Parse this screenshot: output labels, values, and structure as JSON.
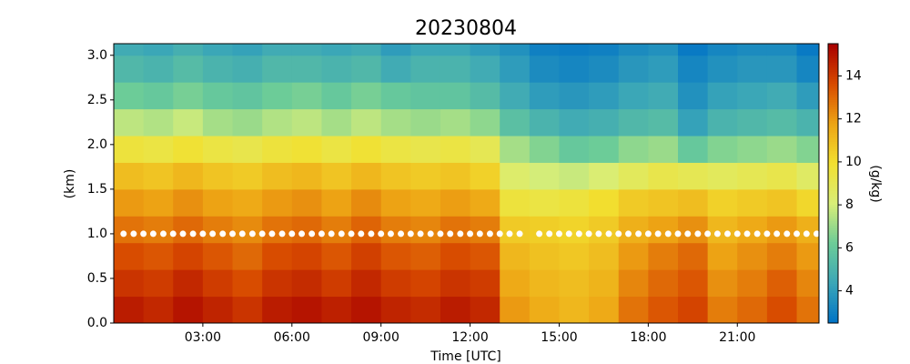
{
  "chart_data": {
    "type": "heatmap",
    "title": "20230804",
    "xlabel": "Time [UTC]",
    "ylabel": "(km)",
    "colorbar_label": "(g/kg)",
    "colormap": [
      "#0072c6",
      "#3aa6b8",
      "#6ccc98",
      "#d8ee78",
      "#f2e030",
      "#eda414",
      "#d84a00",
      "#a80000"
    ],
    "clim": [
      2.5,
      15.5
    ],
    "cticks": [
      4,
      6,
      8,
      10,
      12,
      14
    ],
    "xlim": [
      0,
      23.75
    ],
    "ylim": [
      0,
      3.13
    ],
    "xticks": [
      {
        "value": 3,
        "label": "03:00"
      },
      {
        "value": 6,
        "label": "06:00"
      },
      {
        "value": 9,
        "label": "09:00"
      },
      {
        "value": 12,
        "label": "12:00"
      },
      {
        "value": 15,
        "label": "15:00"
      },
      {
        "value": 18,
        "label": "18:00"
      },
      {
        "value": 21,
        "label": "21:00"
      }
    ],
    "yticks": [
      {
        "value": 0,
        "label": "0.0"
      },
      0.5,
      {
        "value": 1,
        "label": "1.0"
      },
      1.5,
      {
        "value": 2,
        "label": "2.0"
      },
      2.5,
      {
        "value": 3,
        "label": "3.0"
      }
    ],
    "x_bins": [
      0,
      1,
      2,
      3,
      4,
      5,
      6,
      7,
      8,
      9,
      10,
      11,
      12,
      13,
      14,
      15,
      16,
      17,
      18,
      19,
      20,
      21,
      22,
      23,
      23.75
    ],
    "y_bins": [
      0,
      0.3,
      0.6,
      0.9,
      1.2,
      1.5,
      1.8,
      2.1,
      2.4,
      2.7,
      3.0,
      3.13
    ],
    "values": [
      [
        14.8,
        14.5,
        15.0,
        14.6,
        14.2,
        14.8,
        15.0,
        14.7,
        15.0,
        14.6,
        14.4,
        14.8,
        14.5,
        12.0,
        11.5,
        11.2,
        11.6,
        12.8,
        13.4,
        13.8,
        12.6,
        13.0,
        13.6,
        12.8
      ],
      [
        14.2,
        14.0,
        14.5,
        14.0,
        13.6,
        14.2,
        14.4,
        14.0,
        14.5,
        14.0,
        13.8,
        14.2,
        14.0,
        11.6,
        11.2,
        11.0,
        11.3,
        12.4,
        13.0,
        13.4,
        12.2,
        12.6,
        13.2,
        12.4
      ],
      [
        13.6,
        13.4,
        13.8,
        13.4,
        13.0,
        13.6,
        13.8,
        13.4,
        13.9,
        13.4,
        13.2,
        13.6,
        13.4,
        11.2,
        10.9,
        10.7,
        11.0,
        12.0,
        12.6,
        13.0,
        11.8,
        12.2,
        12.6,
        12.0
      ],
      [
        12.8,
        12.6,
        13.0,
        12.6,
        12.3,
        12.8,
        13.0,
        12.6,
        13.1,
        12.6,
        12.4,
        12.8,
        12.6,
        10.6,
        10.5,
        10.3,
        10.6,
        11.4,
        11.8,
        12.2,
        11.2,
        11.6,
        12.0,
        11.4
      ],
      [
        12.0,
        11.8,
        12.2,
        11.8,
        11.6,
        12.0,
        12.2,
        11.8,
        12.3,
        11.8,
        11.6,
        11.9,
        11.6,
        9.6,
        9.4,
        9.6,
        10.0,
        10.6,
        10.8,
        11.0,
        10.4,
        10.6,
        10.8,
        10.2
      ],
      [
        11.0,
        10.8,
        11.2,
        10.8,
        10.6,
        11.0,
        11.2,
        10.8,
        11.2,
        10.8,
        10.6,
        10.8,
        10.4,
        8.4,
        8.0,
        7.8,
        8.2,
        8.8,
        9.2,
        9.0,
        8.8,
        9.0,
        9.2,
        8.6
      ],
      [
        9.6,
        9.4,
        9.8,
        9.4,
        9.2,
        9.6,
        9.8,
        9.4,
        9.8,
        9.4,
        9.2,
        9.4,
        9.0,
        7.2,
        6.6,
        6.0,
        6.2,
        6.8,
        7.0,
        6.0,
        6.6,
        6.8,
        7.0,
        6.6
      ],
      [
        7.6,
        7.4,
        7.8,
        7.2,
        7.0,
        7.4,
        7.6,
        7.2,
        7.6,
        7.2,
        7.0,
        7.2,
        6.8,
        5.6,
        5.0,
        4.6,
        4.8,
        5.2,
        5.4,
        4.2,
        5.0,
        5.2,
        5.4,
        5.0
      ],
      [
        6.2,
        6.0,
        6.4,
        6.0,
        5.8,
        6.2,
        6.4,
        6.0,
        6.4,
        6.0,
        5.8,
        5.8,
        5.4,
        4.6,
        4.0,
        3.8,
        4.0,
        4.4,
        4.6,
        3.6,
        4.2,
        4.4,
        4.6,
        4.0
      ],
      [
        5.2,
        5.0,
        5.4,
        5.0,
        4.8,
        5.2,
        5.2,
        5.0,
        5.2,
        4.6,
        5.0,
        5.0,
        4.6,
        4.0,
        3.4,
        3.2,
        3.4,
        3.8,
        4.0,
        3.2,
        3.6,
        3.8,
        3.8,
        3.2
      ],
      [
        4.6,
        4.4,
        4.8,
        4.4,
        4.2,
        4.6,
        4.6,
        4.4,
        4.6,
        4.0,
        4.4,
        4.4,
        4.0,
        3.6,
        3.0,
        2.9,
        3.0,
        3.4,
        3.6,
        2.8,
        3.2,
        3.4,
        3.4,
        2.8
      ]
    ],
    "markers": {
      "color": "#ffffff",
      "x": [
        0.33,
        0.67,
        1,
        1.33,
        1.67,
        2,
        2.33,
        2.67,
        3,
        3.33,
        3.67,
        4,
        4.33,
        4.67,
        5,
        5.33,
        5.67,
        6,
        6.33,
        6.67,
        7,
        7.33,
        7.67,
        8,
        8.33,
        8.67,
        9,
        9.33,
        9.67,
        10,
        10.33,
        10.67,
        11,
        11.33,
        11.67,
        12,
        12.33,
        12.67,
        13,
        13.33,
        13.67,
        14.33,
        14.67,
        15,
        15.33,
        15.67,
        16,
        16.33,
        16.67,
        17,
        17.33,
        17.67,
        18,
        18.33,
        18.67,
        19,
        19.33,
        19.67,
        20,
        20.33,
        20.67,
        21,
        21.33,
        21.67,
        22,
        22.33,
        22.67,
        23,
        23.33,
        23.67
      ],
      "values": [
        1,
        1,
        1,
        1,
        1,
        1,
        1,
        1,
        1,
        1,
        1,
        1,
        1,
        1,
        1,
        1,
        1,
        1,
        1,
        1,
        1,
        1,
        1,
        1,
        1,
        1,
        1,
        1,
        1,
        1,
        1,
        1,
        1,
        1,
        1,
        1,
        1,
        1,
        1,
        1,
        1,
        1,
        1,
        1,
        1,
        1,
        1,
        1,
        1,
        1,
        1,
        1,
        1,
        1,
        1,
        1,
        1,
        1,
        1,
        1,
        1,
        1,
        1,
        1,
        1,
        1,
        1,
        1,
        1,
        1
      ]
    }
  }
}
